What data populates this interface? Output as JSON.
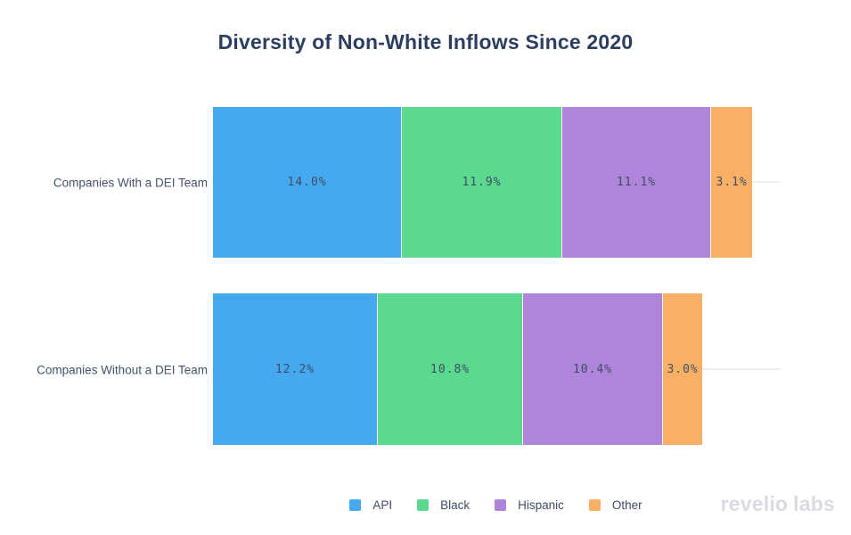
{
  "chart_data": {
    "type": "bar",
    "orientation": "horizontal-stacked",
    "title": "Diversity of Non-White Inflows Since 2020",
    "categories": [
      "Companies With a DEI Team",
      "Companies Without a DEI Team"
    ],
    "series": [
      {
        "name": "API",
        "color": "#45a9f0",
        "values": [
          14.0,
          12.2
        ],
        "labels": [
          "14.0%",
          "12.2%"
        ]
      },
      {
        "name": "Black",
        "color": "#5bd98e",
        "values": [
          11.9,
          10.8
        ],
        "labels": [
          "11.9%",
          "10.8%"
        ]
      },
      {
        "name": "Hispanic",
        "color": "#af85db",
        "values": [
          11.1,
          10.4
        ],
        "labels": [
          "11.1%",
          "10.4%"
        ]
      },
      {
        "name": "Other",
        "color": "#f9b065",
        "values": [
          3.1,
          3.0
        ],
        "labels": [
          "3.1%",
          "3.0%"
        ]
      }
    ],
    "unit": "%",
    "xlim": [
      0,
      42.2
    ],
    "grid": "horizontal category gridlines, light gray",
    "legend_position": "bottom-center"
  },
  "colors": {
    "title_text": "#2c3e5f",
    "tick_text": "#44526b",
    "value_text": "#3f4d66",
    "gridline": "#eef0f3",
    "watermark_text": "#d8dbe2",
    "background": "#ffffff"
  },
  "watermark": {
    "brand_primary": "revelio",
    "brand_secondary": "labs"
  }
}
